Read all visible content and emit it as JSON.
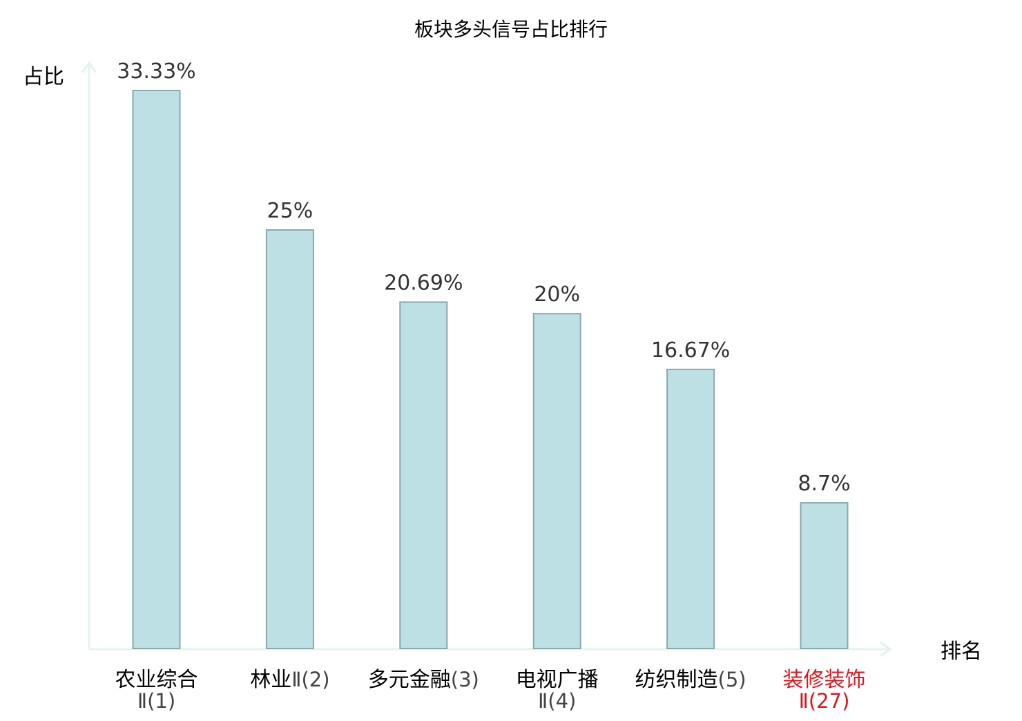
{
  "chart_data": {
    "type": "bar",
    "title": "板块多头信号占比排行",
    "ylabel": "占比",
    "xlabel": "排名",
    "ylim": [
      0,
      35
    ],
    "grid": false,
    "legend": "none",
    "categories": [
      {
        "name": "农业综合",
        "suffix": "Ⅱ(1)",
        "highlight": false
      },
      {
        "name": "林业",
        "suffix": "Ⅱ(2)",
        "highlight": false
      },
      {
        "name": "多元金融",
        "suffix": "(3)",
        "highlight": false
      },
      {
        "name": "电视广播",
        "suffix": "Ⅱ(4)",
        "highlight": false
      },
      {
        "name": "纺织制造",
        "suffix": "(5)",
        "highlight": false
      },
      {
        "name": "装修装饰",
        "suffix": "Ⅱ(27)",
        "highlight": true
      }
    ],
    "values": [
      33.33,
      25,
      20.69,
      20,
      16.67,
      8.7
    ],
    "value_labels": [
      "33.33%",
      "25%",
      "20.69%",
      "20%",
      "16.67%",
      "8.7%"
    ]
  },
  "colors": {
    "bar_fill": "#bce0e3",
    "bar_stroke": "#8aa9ab",
    "axis": "#e2f3f1",
    "text": "#333333",
    "label": "#000000",
    "suffix": "#444444",
    "highlight": "#e0141d"
  }
}
